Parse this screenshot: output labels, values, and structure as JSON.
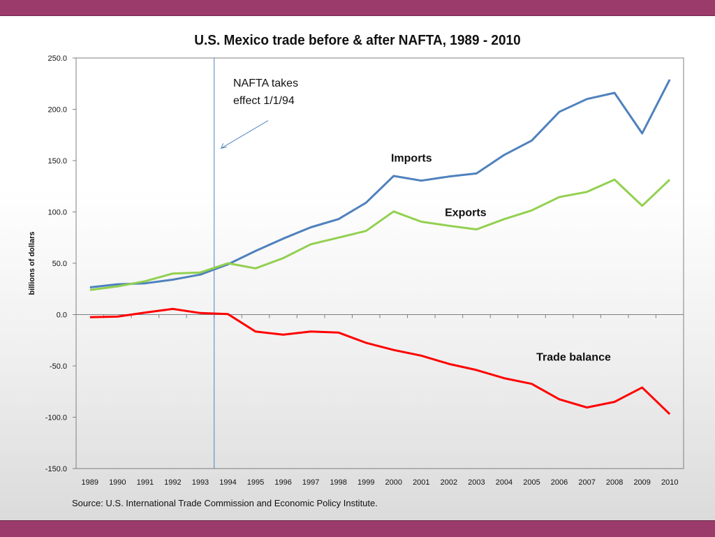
{
  "title": "U.S. Mexico trade before & after NAFTA, 1989 - 2010",
  "source": "Source:  U.S. International Trade Commission and Economic Policy Institute.",
  "chart_data": {
    "type": "line",
    "title": "U.S. Mexico trade before & after NAFTA, 1989 - 2010",
    "xlabel": "",
    "ylabel": "billions of dollars",
    "ylim": [
      -150,
      250
    ],
    "yticks": [
      250,
      200,
      150,
      100,
      50,
      0,
      -50,
      -100,
      -150
    ],
    "ytick_labels": [
      "250.0",
      "200.0",
      "150.0",
      "100.0",
      "50.0",
      "0.0",
      "-50.0",
      "-100.0",
      "-150.0"
    ],
    "categories": [
      "1989",
      "1990",
      "1991",
      "1992",
      "1993",
      "1994",
      "1995",
      "1996",
      "1997",
      "1998",
      "1999",
      "2000",
      "2001",
      "2002",
      "2003",
      "2004",
      "2005",
      "2006",
      "2007",
      "2008",
      "2009",
      "2010"
    ],
    "series": [
      {
        "name": "Imports",
        "color": "#4f81bd",
        "values": [
          26.5,
          29.5,
          30.5,
          34,
          39,
          49,
          62,
          74,
          85,
          93,
          109,
          135,
          130.5,
          134.5,
          137.5,
          155.5,
          169.5,
          197.5,
          210,
          216,
          176.5,
          229
        ]
      },
      {
        "name": "Exports",
        "color": "#92d050",
        "values": [
          24,
          27.5,
          32.5,
          40,
          41,
          50,
          45,
          55,
          68.5,
          75,
          81.5,
          100.5,
          90.5,
          86.5,
          83,
          93,
          101.5,
          114.5,
          119.5,
          131.5,
          106,
          131.5
        ]
      },
      {
        "name": "Trade balance",
        "color": "#ff0000",
        "values": [
          -2.5,
          -2,
          2,
          5.5,
          1.5,
          0.5,
          -16.5,
          -19.5,
          -16.5,
          -17.5,
          -27.5,
          -34.5,
          -40,
          -48,
          -54,
          -62,
          -67.5,
          -82.5,
          -90.5,
          -85,
          -71,
          -97
        ]
      }
    ],
    "annotations": [
      {
        "text": "NAFTA takes",
        "text2": "effect 1/1/94",
        "at_year": 1994
      },
      {
        "text": "Imports"
      },
      {
        "text": "Exports"
      },
      {
        "text": "Trade balance"
      }
    ],
    "nafta_x": 1993.5,
    "grid": false,
    "legend": "none"
  }
}
